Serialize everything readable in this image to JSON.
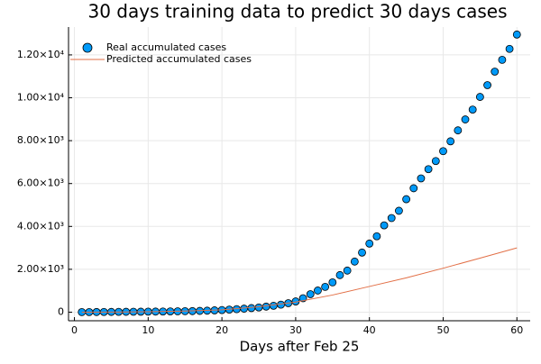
{
  "chart_data": {
    "type": "scatter",
    "title": "30 days training data to predict 30 days cases",
    "x_label": "Days after Feb 25",
    "xlim": [
      -0.8,
      61.8
    ],
    "xticks": [
      0,
      10,
      20,
      30,
      40,
      50,
      60
    ],
    "ylim": [
      -400,
      13300
    ],
    "yticks": [
      0,
      {
        "value": 2000,
        "label": "2.00×10³"
      },
      {
        "value": 4000,
        "label": "4.00×10³"
      },
      {
        "value": 6000,
        "label": "6.00×10³"
      },
      {
        "value": 8000,
        "label": "8.00×10³"
      },
      {
        "value": 10000,
        "label": "1.00×10⁴"
      },
      {
        "value": 12000,
        "label": "1.20×10⁴"
      }
    ],
    "grid": true,
    "legend": "top-left",
    "series": [
      {
        "name": "Real accumulated cases",
        "type": "scatter",
        "color": "#009af9",
        "x": [
          1,
          2,
          3,
          4,
          5,
          6,
          7,
          8,
          9,
          10,
          11,
          12,
          13,
          14,
          15,
          16,
          17,
          18,
          19,
          20,
          21,
          22,
          23,
          24,
          25,
          26,
          27,
          28,
          29,
          30,
          31,
          32,
          33,
          34,
          35,
          36,
          37,
          38,
          39,
          40,
          41,
          42,
          43,
          44,
          45,
          46,
          47,
          48,
          49,
          50,
          51,
          52,
          53,
          54,
          55,
          56,
          57,
          58,
          59,
          60
        ],
        "values": [
          3,
          5,
          8,
          10,
          12,
          15,
          18,
          20,
          22,
          25,
          28,
          32,
          36,
          40,
          45,
          50,
          60,
          70,
          85,
          100,
          120,
          140,
          165,
          190,
          220,
          260,
          300,
          350,
          420,
          500,
          650,
          840,
          1010,
          1180,
          1390,
          1730,
          1940,
          2360,
          2780,
          3200,
          3540,
          4050,
          4390,
          4730,
          5270,
          5780,
          6240,
          6670,
          7050,
          7510,
          7970,
          8480,
          8990,
          9450,
          10040,
          10590,
          11220,
          11770,
          12280,
          12950
        ]
      },
      {
        "name": "Predicted accumulated cases",
        "type": "line",
        "color": "#e26f46",
        "x": [
          1,
          5,
          10,
          15,
          20,
          25,
          30,
          35,
          40,
          45,
          50,
          55,
          60
        ],
        "values": [
          0,
          5,
          20,
          50,
          110,
          250,
          470,
          800,
          1200,
          1600,
          2050,
          2520,
          3000
        ]
      }
    ]
  }
}
